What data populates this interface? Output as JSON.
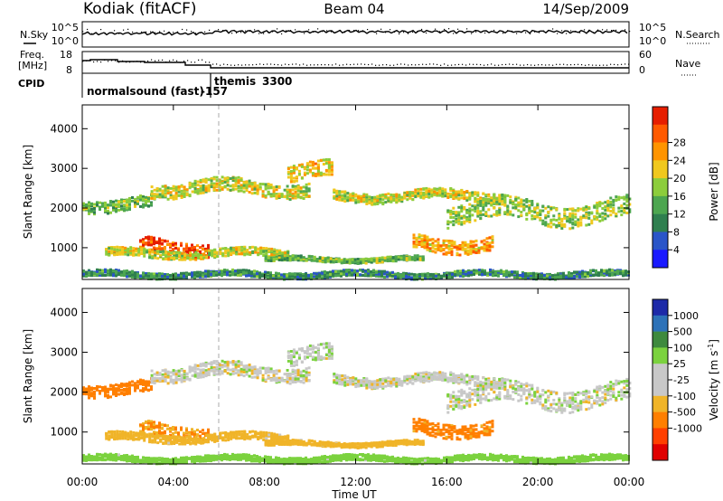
{
  "header": {
    "station": "Kodiak (fitACF)",
    "beam": "Beam 04",
    "date": "14/Sep/2009"
  },
  "noise_panel": {
    "left_label": "N.Sky",
    "right_label": "N.Search",
    "left_ticks": [
      "10^5",
      "10^0"
    ],
    "right_ticks": [
      "10^5",
      "10^0"
    ]
  },
  "freq_panel": {
    "left_label_1": "Freq.",
    "left_label_2": "[MHz]",
    "right_label": "Nave",
    "left_ticks": [
      "18",
      "8"
    ],
    "right_ticks": [
      "60",
      "0"
    ]
  },
  "cpid": {
    "label": "CPID",
    "modes": [
      {
        "name": "normalsound (fast)",
        "id": "-157",
        "start_hour": 0
      },
      {
        "name": "themis",
        "id": "3300",
        "start_hour": 6
      }
    ]
  },
  "colors": {
    "power_scale": [
      "#1a1aff",
      "#2a55c8",
      "#2f7f4f",
      "#4da650",
      "#8ccd3c",
      "#f0c81e",
      "#ff9400",
      "#ff5a00",
      "#e61e00"
    ],
    "velocity_scale": [
      "#1d2aa8",
      "#2d72b8",
      "#3e8a3e",
      "#7bd23e",
      "#c8c8c8",
      "#c8c8c8",
      "#f0b428",
      "#ff7f00",
      "#ff4000",
      "#e00000"
    ]
  },
  "power_colorbar": {
    "label": "Power [dB]",
    "ticks": [
      "4",
      "8",
      "12",
      "16",
      "20",
      "24",
      "28"
    ]
  },
  "velocity_colorbar": {
    "label": "Velocity [m s",
    "label_sup": "-1",
    "label_close": "]",
    "ticks": [
      "1000",
      "500",
      "100",
      "25",
      "-25",
      "-100",
      "-500",
      "-1000"
    ]
  },
  "chart_data": {
    "type": "heatmap",
    "panels": [
      "power",
      "velocity"
    ],
    "x": {
      "label": "Time UT",
      "range_hours": [
        0,
        24
      ],
      "ticks": [
        "00:00",
        "04:00",
        "08:00",
        "12:00",
        "16:00",
        "20:00",
        "00:00"
      ]
    },
    "y": {
      "label": "Slant Range [km]",
      "range": [
        200,
        4600
      ],
      "ticks": [
        "1000",
        "2000",
        "3000",
        "4000"
      ]
    },
    "power_scale_db": [
      0,
      32
    ],
    "velocity_scale_ms": [
      -1000,
      1000
    ],
    "scatter_bands": [
      {
        "t_start": 0.0,
        "t_end": 3.0,
        "range_center": 2100,
        "range_width": 300,
        "power_db": 14,
        "velocity_ms": -300
      },
      {
        "t_start": 2.5,
        "t_end": 5.5,
        "range_center": 1000,
        "range_width": 350,
        "power_db": 28,
        "velocity_ms": -100
      },
      {
        "t_start": 1.0,
        "t_end": 9.0,
        "range_center": 850,
        "range_width": 200,
        "power_db": 18,
        "velocity_ms": -60
      },
      {
        "t_start": 3.0,
        "t_end": 10.0,
        "range_center": 2500,
        "range_width": 350,
        "power_db": 18,
        "velocity_ms": 0
      },
      {
        "t_start": 9.0,
        "t_end": 11.0,
        "range_center": 2900,
        "range_width": 400,
        "power_db": 20,
        "velocity_ms": 10
      },
      {
        "t_start": 11.0,
        "t_end": 18.5,
        "range_center": 2300,
        "range_width": 250,
        "power_db": 18,
        "velocity_ms": 0
      },
      {
        "t_start": 8.0,
        "t_end": 15.0,
        "range_center": 700,
        "range_width": 120,
        "power_db": 14,
        "velocity_ms": -60
      },
      {
        "t_start": 14.5,
        "t_end": 18.0,
        "range_center": 1100,
        "range_width": 350,
        "power_db": 22,
        "velocity_ms": -200
      },
      {
        "t_start": 16.0,
        "t_end": 24.0,
        "range_center": 1900,
        "range_width": 500,
        "power_db": 16,
        "velocity_ms": 5
      },
      {
        "t_start": 0.0,
        "t_end": 24.0,
        "range_center": 320,
        "range_width": 150,
        "power_db": 10,
        "velocity_ms": 60
      }
    ]
  }
}
